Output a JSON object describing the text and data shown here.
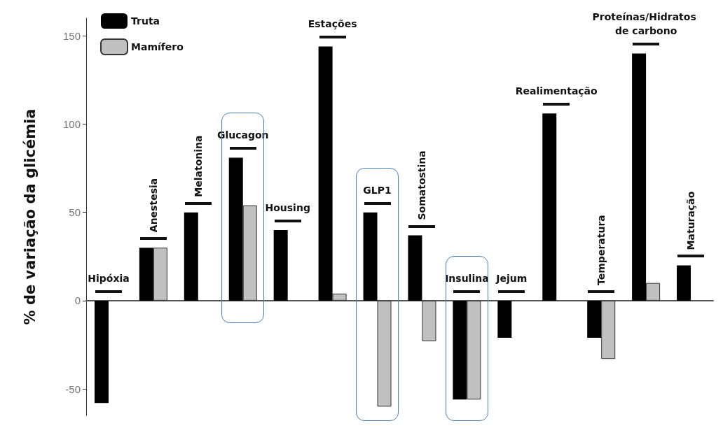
{
  "chart_data": {
    "type": "bar",
    "ylabel": "% de variação da glicémia",
    "categories": [
      "Hipóxia",
      "Anestesia",
      "Melatonina",
      "Glucagon",
      "Housing",
      "Estações",
      "GLP1",
      "Somatostina",
      "Insulina",
      "Jejum",
      "Realimentação",
      "Temperatura",
      "Proteínas/Hidratos de carbono",
      "Maturação"
    ],
    "series": [
      {
        "name": "Truta",
        "color": "#000000",
        "values": [
          -58,
          30,
          50,
          81,
          40,
          144,
          50,
          37,
          -56,
          -21,
          106,
          -21,
          140,
          20
        ]
      },
      {
        "name": "Mamífero",
        "color": "#c0c0c0",
        "values": [
          null,
          30,
          null,
          54,
          null,
          4,
          -60,
          -23,
          -56,
          null,
          null,
          -33,
          10,
          null
        ]
      }
    ],
    "ylim": [
      -65,
      160
    ],
    "yticks": [
      -50,
      0,
      50,
      100,
      150
    ],
    "grid": false,
    "legend": "top left"
  }
}
